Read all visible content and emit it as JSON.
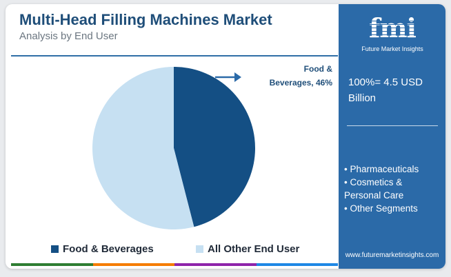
{
  "header": {
    "title": "Multi-Head Filling Machines Market",
    "subtitle": "Analysis by End User"
  },
  "chart_data": {
    "type": "pie",
    "title": "Multi-Head Filling Machines Market",
    "subtitle": "Analysis by End User",
    "categories": [
      "Food & Beverages",
      "All Other End User"
    ],
    "values": [
      46,
      54
    ],
    "colors": [
      "#144f84",
      "#c6e0f2"
    ],
    "annotations": [
      {
        "label": "Food & Beverages, 46%",
        "target": "Food & Beverages"
      }
    ],
    "legend_position": "bottom"
  },
  "callout": {
    "line1": "Food &",
    "line2": "Beverages, 46%"
  },
  "legend": [
    {
      "label": "Food & Beverages",
      "color": "#144f84"
    },
    {
      "label": "All Other End User",
      "color": "#c6e0f2"
    }
  ],
  "sidebar": {
    "logo_text": "fmi",
    "logo_tagline": "Future Market Insights",
    "total_line1": "100%= 4.5 USD",
    "total_line2": "Billion",
    "segments": [
      "• Pharmaceuticals",
      "• Cosmetics &",
      "Personal Care",
      "• Other Segments"
    ],
    "url": "www.futuremarketinsights.com"
  },
  "footer_colors": [
    "#2e7d32",
    "#f57c00",
    "#8e24aa",
    "#1e88e5"
  ]
}
